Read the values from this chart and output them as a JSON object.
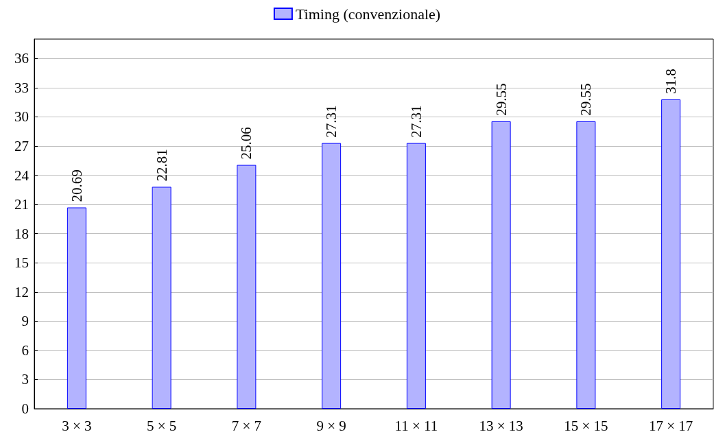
{
  "chart_data": {
    "type": "bar",
    "categories": [
      "3 × 3",
      "5 × 5",
      "7 × 7",
      "9 × 9",
      "11 × 11",
      "13 × 13",
      "15 × 15",
      "17 × 17"
    ],
    "series": [
      {
        "name": "Timing (convenzionale)",
        "color": "#b3b3ff",
        "values": [
          20.69,
          22.81,
          25.06,
          27.31,
          27.31,
          29.55,
          29.55,
          31.8
        ]
      }
    ],
    "ylim": [
      0,
      38
    ],
    "yticks": [
      0,
      3,
      6,
      9,
      12,
      15,
      18,
      21,
      24,
      27,
      30,
      33,
      36
    ],
    "grid": "y",
    "legend": "top",
    "data_labels": true
  }
}
